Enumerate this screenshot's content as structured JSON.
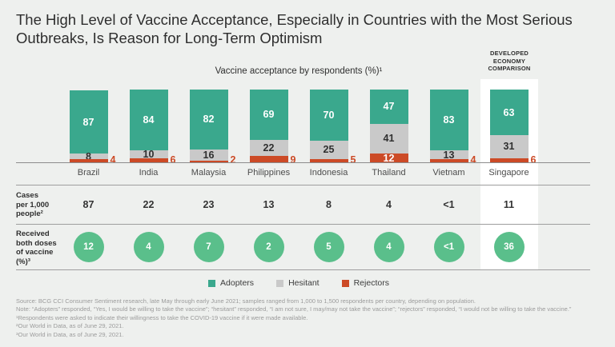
{
  "title": "The High Level of Vaccine Acceptance, Especially in Countries with the Most Serious Outbreaks, Is Reason for Long-Term Optimism",
  "labels": {
    "comparison": "DEVELOPED\nECONOMY\nCOMPARISON",
    "cases_row": "Cases\nper 1,000\npeople²",
    "doses_row": "Received\nboth doses\nof vaccine\n(%)³"
  },
  "colors": {
    "background": "#eef0ee",
    "highlight_column_bg": "#ffffff",
    "adopters_green": "#3aa88d",
    "hesitant_gray": "#c9c9c9",
    "rejectors_red": "#cc4a26",
    "circle_green": "#5abf8b"
  },
  "chart_data": {
    "type": "bar",
    "stacked": true,
    "percent_total": 100,
    "title": "Vaccine acceptance by respondents (%)¹",
    "categories": [
      "Brazil",
      "India",
      "Malaysia",
      "Philippines",
      "Indonesia",
      "Thailand",
      "Vietnam",
      "Singapore"
    ],
    "series": [
      {
        "name": "Adopters",
        "color": "#3aa88d",
        "values": [
          87,
          84,
          82,
          69,
          70,
          47,
          83,
          63
        ]
      },
      {
        "name": "Hesitant",
        "color": "#c9c9c9",
        "values": [
          8,
          10,
          16,
          22,
          25,
          41,
          13,
          31
        ]
      },
      {
        "name": "Rejectors",
        "color": "#cc4a26",
        "values": [
          4,
          6,
          2,
          9,
          5,
          12,
          4,
          6
        ]
      }
    ],
    "cases_per_1000": [
      "87",
      "22",
      "23",
      "13",
      "8",
      "4",
      "<1",
      "11"
    ],
    "received_both_doses_pct": [
      "12",
      "4",
      "7",
      "2",
      "5",
      "4",
      "<1",
      "36"
    ],
    "highlighted_category": "Singapore",
    "legend_position": "bottom"
  },
  "notes": [
    "Source: BCG CCI Consumer Sentiment research, late May through early June 2021; samples ranged from 1,000 to 1,500 respondents per country, depending on population.",
    "Note: “Adopters” responded, “Yes, I would be willing to take the vaccine”; “hesitant” responded, “I am not sure, I may/may not take the vaccine”; “rejectors” responded, “I would not be willing to take the vaccine.”",
    "¹Respondents were asked to indicate their willingness to take the COVID-19 vaccine if it were made available.",
    "²Our World in Data, as of June 29, 2021.",
    "³Our World in Data, as of June 29, 2021."
  ]
}
